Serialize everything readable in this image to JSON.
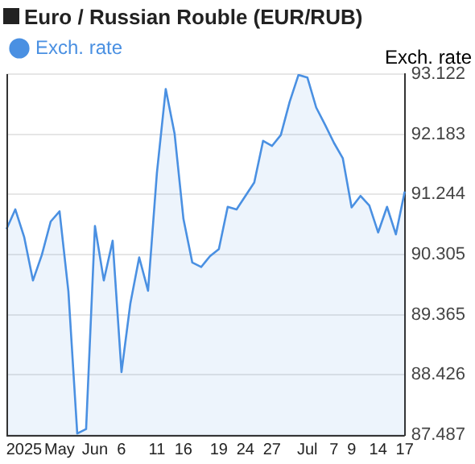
{
  "chart_data": {
    "type": "area",
    "title": "Euro / Russian Rouble (EUR/RUB)",
    "ylabel": "Exch. rate",
    "categories": [
      null,
      null,
      "2025",
      null,
      null,
      null,
      "May",
      null,
      null,
      null,
      "Jun",
      null,
      null,
      "6",
      null,
      null,
      null,
      "11",
      null,
      null,
      "16",
      null,
      null,
      null,
      "19",
      null,
      null,
      "24",
      null,
      null,
      "27",
      null,
      null,
      null,
      "Jul",
      null,
      null,
      "7",
      null,
      "9",
      null,
      null,
      "14",
      null,
      null,
      "17"
    ],
    "series": [
      {
        "name": "Exch. rate",
        "color": "#4a90e2",
        "values": [
          90.7,
          91.01,
          90.58,
          89.9,
          90.3,
          90.82,
          90.98,
          89.73,
          87.51,
          87.58,
          90.75,
          89.9,
          90.52,
          88.47,
          89.54,
          90.26,
          89.74,
          91.58,
          92.89,
          92.19,
          90.86,
          90.18,
          90.11,
          90.28,
          90.39,
          91.05,
          91.01,
          91.22,
          91.43,
          92.08,
          92.0,
          92.17,
          92.69,
          93.11,
          93.07,
          92.6,
          92.33,
          92.05,
          91.81,
          91.04,
          91.22,
          91.07,
          90.65,
          91.05,
          90.62,
          91.29
        ]
      }
    ],
    "ylim": [
      87.487,
      93.122
    ],
    "yticks": [
      87.487,
      88.426,
      89.365,
      90.305,
      91.244,
      92.183,
      93.122
    ],
    "grid": "y",
    "legend": "top left",
    "marker": "none",
    "line_style": "solid"
  }
}
